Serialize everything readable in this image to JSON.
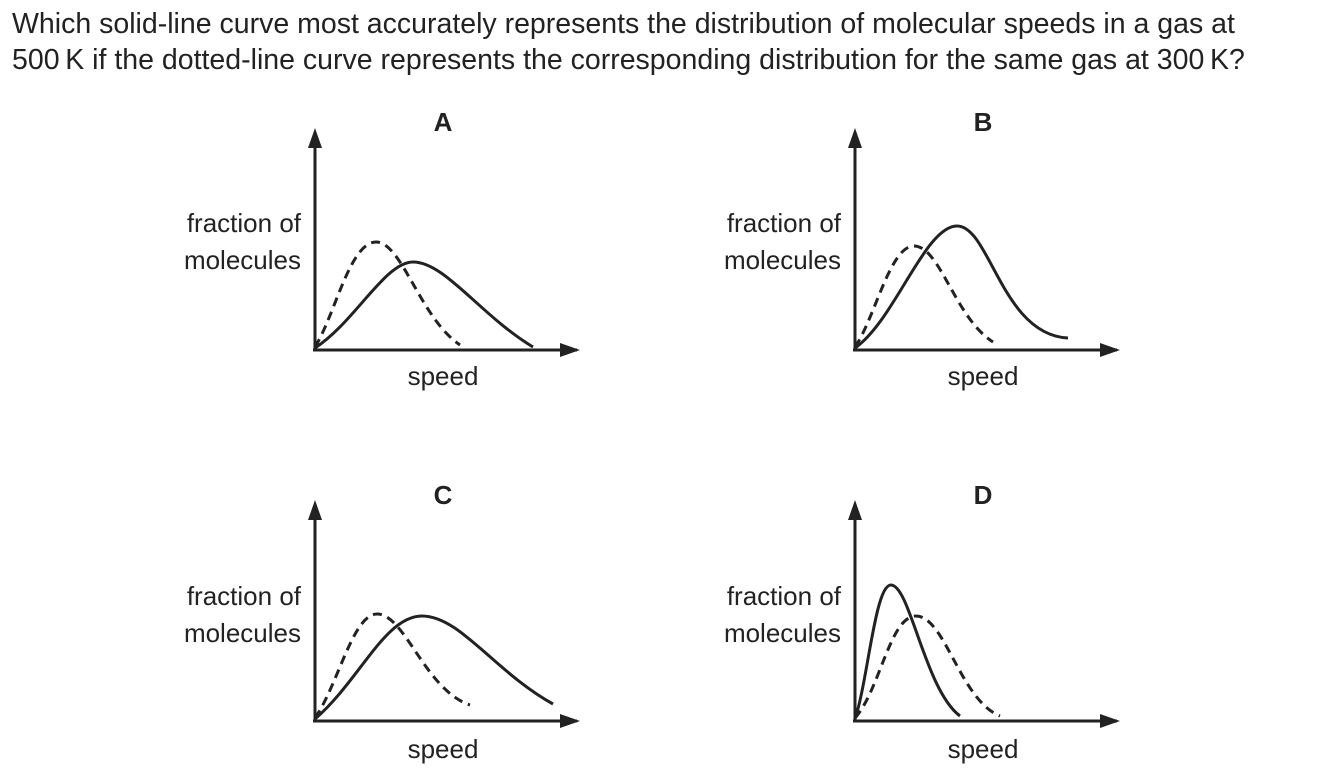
{
  "question": {
    "line1": "Which solid-line curve most accurately represents the distribution of molecular speeds in a gas at",
    "line2": "500 K if the dotted-line curve represents the corresponding distribution for the same gas at 300 K?"
  },
  "colors": {
    "ink": "#222222",
    "background": "#ffffff"
  },
  "panels": [
    {
      "letter": "A",
      "ylabel_line1": "fraction of",
      "ylabel_line2": "molecules",
      "xlabel": "speed"
    },
    {
      "letter": "B",
      "ylabel_line1": "fraction of",
      "ylabel_line2": "molecules",
      "xlabel": "speed"
    },
    {
      "letter": "C",
      "ylabel_line1": "fraction of",
      "ylabel_line2": "molecules",
      "xlabel": "speed"
    },
    {
      "letter": "D",
      "ylabel_line1": "fraction of",
      "ylabel_line2": "molecules",
      "xlabel": "speed"
    }
  ]
}
